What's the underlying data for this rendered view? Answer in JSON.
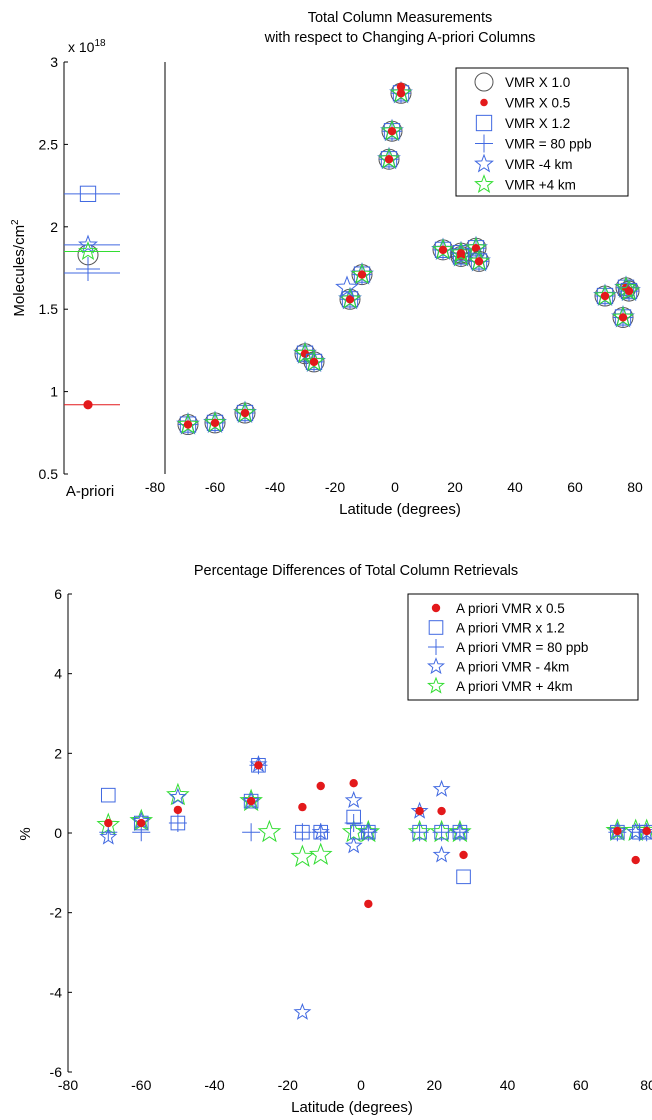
{
  "chart_data": [
    {
      "type": "scatter",
      "panel": "a-priori",
      "xlabel": "A-priori",
      "ylabel": "Molecules/cm",
      "ylabel_sup": "2",
      "exponent_label": "x 10",
      "exponent_sup": "18",
      "ylim": [
        0.5,
        3
      ],
      "yticks": [
        "0.5",
        "1",
        "1.5",
        "2",
        "2.5",
        "3"
      ],
      "grid": false,
      "series": [
        {
          "name": "VMR X 1.0",
          "y": 1.83,
          "color": "#555555",
          "marker": "circle"
        },
        {
          "name": "VMR X 0.5",
          "y": 0.92,
          "color": "#e3191b",
          "marker": "dot"
        },
        {
          "name": "VMR X 1.2",
          "y": 2.2,
          "color": "#4169e1",
          "marker": "square"
        },
        {
          "name": "VMR = 80 ppb",
          "y": 1.72,
          "color": "#4169e1",
          "marker": "plus"
        },
        {
          "name": "VMR -4 km",
          "y": 1.89,
          "color": "#4169e1",
          "marker": "star"
        },
        {
          "name": "VMR +4 km",
          "y": 1.85,
          "color": "#33dd33",
          "marker": "star"
        }
      ]
    },
    {
      "type": "scatter",
      "title": "Total Column Measurements",
      "subtitle": "with respect to Changing A-priori Columns",
      "xlabel": "Latitude (degrees)",
      "xlim": [
        -80,
        80
      ],
      "ylim": [
        0.5,
        3
      ],
      "xticks": [
        "-80",
        "-60",
        "-40",
        "-20",
        "0",
        "20",
        "40",
        "60",
        "80"
      ],
      "legend_position": "top-right",
      "grid": false,
      "legend": [
        "VMR X 1.0",
        "VMR X 0.5",
        "VMR X 1.2",
        "VMR = 80 ppb",
        "VMR -4 km",
        "VMR +4 km"
      ],
      "points": [
        {
          "x": -69,
          "y": 0.8
        },
        {
          "x": -60,
          "y": 0.81
        },
        {
          "x": -50,
          "y": 0.87
        },
        {
          "x": -30,
          "y": 1.23
        },
        {
          "x": -27,
          "y": 1.18
        },
        {
          "x": -15,
          "y": 1.56
        },
        {
          "x": -11,
          "y": 1.71
        },
        {
          "x": -2,
          "y": 2.41
        },
        {
          "x": -1,
          "y": 2.58
        },
        {
          "x": 2,
          "y": 2.81
        },
        {
          "x": 16,
          "y": 1.86
        },
        {
          "x": 22,
          "y": 1.82
        },
        {
          "x": 22,
          "y": 1.84
        },
        {
          "x": 27,
          "y": 1.87
        },
        {
          "x": 28,
          "y": 1.79
        },
        {
          "x": 70,
          "y": 1.58
        },
        {
          "x": 76,
          "y": 1.45
        },
        {
          "x": 77,
          "y": 1.63
        },
        {
          "x": 78,
          "y": 1.61
        }
      ],
      "outliers": [
        {
          "series": "VMR -4 km",
          "x": -16,
          "y": 1.63
        },
        {
          "series": "VMR X 0.5",
          "x": 2,
          "y": 2.85
        }
      ]
    },
    {
      "type": "scatter",
      "title": "Percentage Differences of Total Column Retrievals",
      "xlabel": "Latitude (degrees)",
      "ylabel": "%",
      "xlim": [
        -80,
        80
      ],
      "ylim": [
        -6,
        6
      ],
      "xticks": [
        "-80",
        "-60",
        "-40",
        "-20",
        "0",
        "20",
        "40",
        "60",
        "80"
      ],
      "yticks": [
        "-6",
        "-4",
        "-2",
        "0",
        "2",
        "4",
        "6"
      ],
      "legend_position": "top-right",
      "grid": false,
      "series": [
        {
          "name": "A priori VMR x 0.5",
          "color": "#e3191b",
          "marker": "dot",
          "x": [
            -69,
            -60,
            -50,
            -30,
            -28,
            -16,
            -11,
            -2,
            2,
            16,
            22,
            28,
            70,
            75,
            78
          ],
          "y": [
            0.25,
            0.25,
            0.58,
            0.8,
            1.7,
            0.65,
            1.18,
            1.25,
            -1.78,
            0.55,
            0.55,
            -0.55,
            0.05,
            -0.68,
            0.05
          ]
        },
        {
          "name": "A priori VMR x 1.2",
          "color": "#4169e1",
          "marker": "square",
          "x": [
            -69,
            -60,
            -50,
            -30,
            -28,
            -16,
            -11,
            -2,
            -1,
            2,
            16,
            22,
            27,
            28,
            70,
            76,
            78
          ],
          "y": [
            0.95,
            0.25,
            0.25,
            0.8,
            1.7,
            0.02,
            0.02,
            0.4,
            0.02,
            0.02,
            0.02,
            0.02,
            0.02,
            -1.1,
            0.02,
            0.02,
            0.02
          ]
        },
        {
          "name": "A priori VMR = 80 ppb",
          "color": "#4169e1",
          "marker": "plus",
          "x": [
            -69,
            -60,
            -50,
            -30,
            -28,
            -16,
            -11,
            -2,
            2,
            16,
            22,
            27,
            70,
            76,
            78
          ],
          "y": [
            0.02,
            0.02,
            0.25,
            0.02,
            1.7,
            0.02,
            0.02,
            0.25,
            0.02,
            0.02,
            0.02,
            0.02,
            0.02,
            0.02,
            0.02
          ]
        },
        {
          "name": "A priori VMR - 4km",
          "color": "#4169e1",
          "marker": "star",
          "x": [
            -69,
            -60,
            -50,
            -30,
            -28,
            -16,
            -11,
            -2,
            -2,
            2,
            16,
            22,
            22,
            27,
            70,
            75,
            78
          ],
          "y": [
            -0.1,
            0.3,
            0.9,
            0.8,
            1.72,
            -4.5,
            0.02,
            0.82,
            -0.32,
            0.02,
            0.55,
            1.1,
            -0.55,
            0.02,
            0.05,
            0.02,
            0.02
          ]
        },
        {
          "name": "A priori VMR + 4km",
          "color": "#33dd33",
          "marker": "star",
          "x": [
            -69,
            -60,
            -50,
            -30,
            -25,
            -16,
            -11,
            -2,
            2,
            16,
            22,
            27,
            70,
            75,
            78
          ],
          "y": [
            0.2,
            0.3,
            0.95,
            0.8,
            0.02,
            -0.6,
            -0.55,
            0.02,
            0.02,
            0.02,
            0.02,
            0.02,
            0.05,
            0.05,
            0.05
          ]
        }
      ]
    }
  ]
}
